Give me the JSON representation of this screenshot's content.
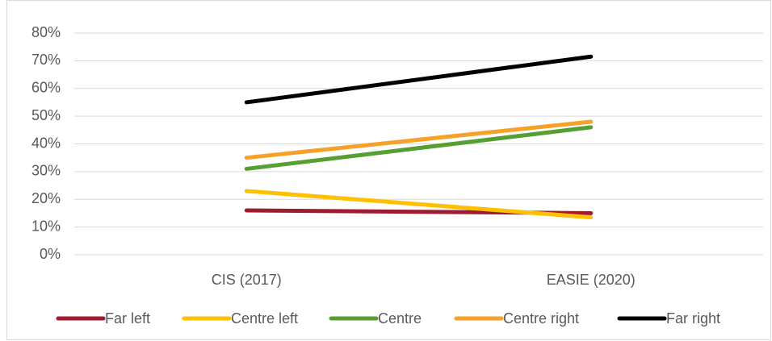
{
  "chart_data": {
    "type": "line",
    "categories": [
      "CIS (2017)",
      "EASIE (2020)"
    ],
    "series": [
      {
        "name": "Far left",
        "color": "#9e1b32",
        "values": [
          16,
          15
        ]
      },
      {
        "name": "Centre left",
        "color": "#ffc000",
        "values": [
          23,
          13.5
        ]
      },
      {
        "name": "Centre",
        "color": "#56a033",
        "values": [
          31,
          46
        ]
      },
      {
        "name": "Centre right",
        "color": "#f7a128",
        "values": [
          35,
          48
        ]
      },
      {
        "name": "Far right",
        "color": "#000000",
        "values": [
          55,
          71.5
        ]
      }
    ],
    "ylim": [
      0,
      80
    ],
    "yticks": [
      {
        "value": 0,
        "label": "0%"
      },
      {
        "value": 10,
        "label": "10%"
      },
      {
        "value": 20,
        "label": "20%"
      },
      {
        "value": 30,
        "label": "30%"
      },
      {
        "value": 40,
        "label": "40%"
      },
      {
        "value": 50,
        "label": "50%"
      },
      {
        "value": 60,
        "label": "60%"
      },
      {
        "value": 70,
        "label": "70%"
      },
      {
        "value": 80,
        "label": "80%"
      }
    ],
    "grid": true,
    "legend": "bottom"
  }
}
